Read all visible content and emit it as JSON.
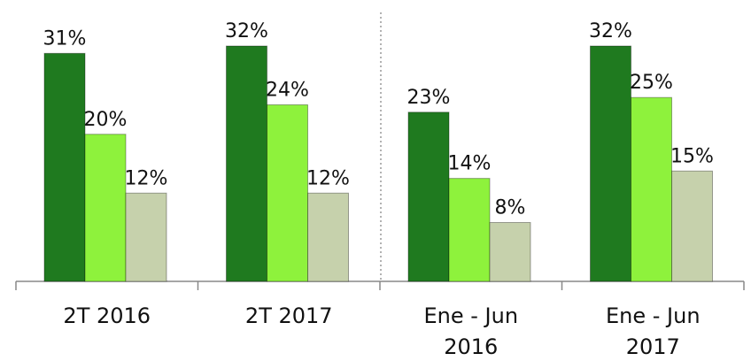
{
  "chart_data": {
    "type": "bar",
    "categories": [
      "2T 2016",
      "2T 2017",
      "Ene - Jun 2016",
      "Ene - Jun 2017"
    ],
    "series": [
      {
        "color": "#1f7a1f",
        "values": [
          31,
          32,
          23,
          32
        ],
        "value_labels": [
          "31%",
          "32%",
          "23%",
          "32%"
        ]
      },
      {
        "color": "#8ef23c",
        "values": [
          20,
          24,
          14,
          25
        ],
        "value_labels": [
          "20%",
          "24%",
          "14%",
          "25%"
        ]
      },
      {
        "color": "#c6d1ac",
        "values": [
          12,
          12,
          8,
          15
        ],
        "value_labels": [
          "12%",
          "12%",
          "8%",
          "15%"
        ]
      }
    ]
  }
}
